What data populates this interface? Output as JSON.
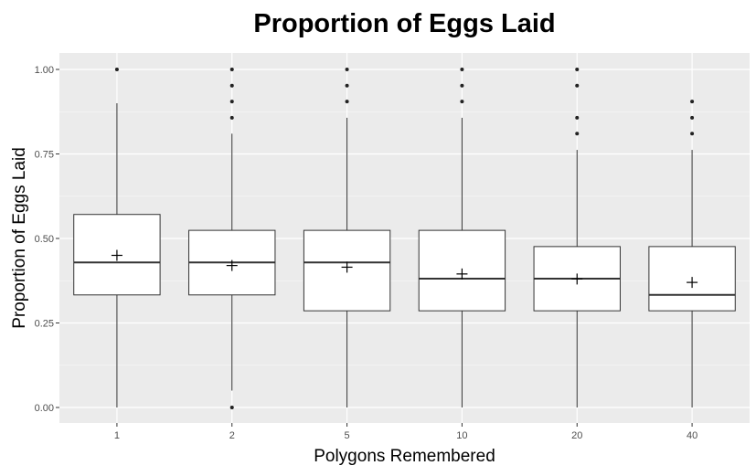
{
  "chart_data": {
    "type": "boxplot",
    "title": "Proportion of Eggs Laid",
    "xlabel": "Polygons Remembered",
    "ylabel": "Proportion of Eggs Laid",
    "categories": [
      "1",
      "2",
      "5",
      "10",
      "20",
      "40"
    ],
    "y_ticks": [
      "0.00",
      "0.25",
      "0.50",
      "0.75",
      "1.00"
    ],
    "ylim": [
      -0.05,
      1.05
    ],
    "grid": true,
    "colors": {
      "panel": "#ebebeb",
      "grid": "#ffffff",
      "box_fill": "#ffffff",
      "stroke": "#333333"
    },
    "boxes": [
      {
        "category": "1",
        "whisker_low": 0.0,
        "q1": 0.333,
        "median": 0.429,
        "q3": 0.571,
        "whisker_high": 0.9,
        "mean": 0.45,
        "outliers": [
          1.0
        ]
      },
      {
        "category": "2",
        "whisker_low": 0.05,
        "q1": 0.333,
        "median": 0.429,
        "q3": 0.524,
        "whisker_high": 0.81,
        "mean": 0.42,
        "outliers": [
          0.0,
          0.857,
          0.905,
          0.952,
          1.0
        ]
      },
      {
        "category": "5",
        "whisker_low": 0.0,
        "q1": 0.286,
        "median": 0.429,
        "q3": 0.524,
        "whisker_high": 0.857,
        "mean": 0.415,
        "outliers": [
          0.905,
          0.952,
          1.0
        ]
      },
      {
        "category": "10",
        "whisker_low": 0.0,
        "q1": 0.286,
        "median": 0.381,
        "q3": 0.524,
        "whisker_high": 0.857,
        "mean": 0.395,
        "outliers": [
          0.905,
          0.952,
          1.0
        ]
      },
      {
        "category": "20",
        "whisker_low": 0.0,
        "q1": 0.286,
        "median": 0.381,
        "q3": 0.476,
        "whisker_high": 0.762,
        "mean": 0.38,
        "outliers": [
          0.81,
          0.857,
          0.952,
          1.0
        ]
      },
      {
        "category": "40",
        "whisker_low": 0.0,
        "q1": 0.286,
        "median": 0.333,
        "q3": 0.476,
        "whisker_high": 0.762,
        "mean": 0.37,
        "outliers": [
          0.81,
          0.857,
          0.905
        ]
      }
    ]
  }
}
